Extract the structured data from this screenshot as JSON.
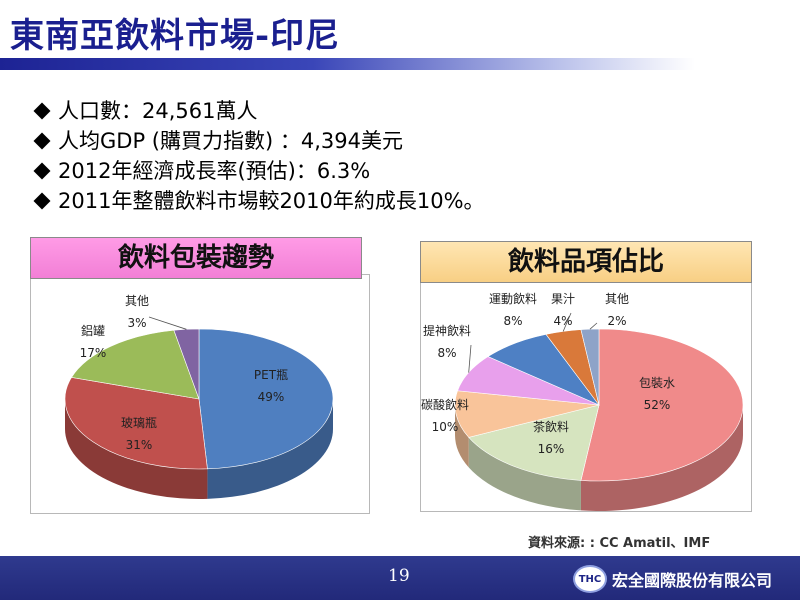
{
  "slide": {
    "title": "東南亞飲料市場-印尼",
    "bullets": [
      "人口數：24,561萬人",
      "人均GDP (購買力指數) ：4,394美元",
      "2012年經濟成長率(預估)：6.3%",
      "2011年整體飲料市場較2010年約成長10%。"
    ],
    "source": "資料來源: : CC Amatil、IMF",
    "page_number": "19",
    "company": "宏全國際股份有限公司",
    "logo_text": "THC"
  },
  "chart_data": [
    {
      "type": "pie",
      "title": "飲料包裝趨勢",
      "labels": [
        "PET瓶",
        "玻璃瓶",
        "鋁罐",
        "其他"
      ],
      "values": [
        49,
        31,
        17,
        3
      ],
      "value_labels": [
        "49%",
        "31%",
        "17%",
        "3%"
      ],
      "colors": [
        "#4f7fc0",
        "#c0504d",
        "#9bbb59",
        "#8064a2"
      ]
    },
    {
      "type": "pie",
      "title": "飲料品項佔比",
      "labels": [
        "包裝水",
        "茶飲料",
        "碳酸飲料",
        "提神飲料",
        "運動飲料",
        "果汁",
        "其他"
      ],
      "values": [
        52,
        16,
        10,
        8,
        8,
        4,
        2
      ],
      "value_labels": [
        "52%",
        "16%",
        "10%",
        "8%",
        "8%",
        "4%",
        "2%"
      ],
      "colors": [
        "#f08a8a",
        "#d6e4bf",
        "#f9c49a",
        "#e8a0ec",
        "#4e80c4",
        "#d9793a",
        "#8ea3c8"
      ]
    }
  ]
}
